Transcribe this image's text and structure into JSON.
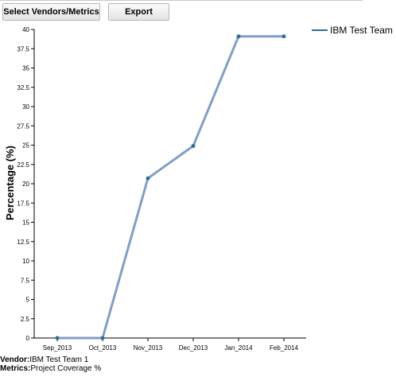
{
  "toolbar": {
    "select_label": "Select Vendors/Metrics",
    "export_label": "Export"
  },
  "chart_data": {
    "type": "line",
    "title": "",
    "xlabel": "",
    "ylabel": "Percentage (%)",
    "categories": [
      "Sep_2013",
      "Oct_2013",
      "Nov_2013",
      "Dec_2013",
      "Jan_2014",
      "Feb_2014"
    ],
    "ylim": [
      0,
      40
    ],
    "yticks": [
      "0",
      "2.5",
      "5",
      "7.5",
      "10",
      "12.5",
      "15",
      "17.5",
      "20",
      "22.5",
      "25",
      "27.5",
      "30",
      "32.5",
      "35",
      "37.5",
      "40"
    ],
    "grid": false,
    "legend_position": "top-right",
    "series": [
      {
        "name": "IBM Test Team 1",
        "color": "#7f9fc8",
        "marker_color": "#2f6f96",
        "values": [
          0,
          0,
          20.7,
          24.9,
          39.1,
          39.1
        ]
      }
    ]
  },
  "footer": {
    "vendor_key": "Vendor:",
    "vendor_value": "IBM Test Team 1",
    "metrics_key": "Metrics:",
    "metrics_value": "Project Coverage %"
  }
}
